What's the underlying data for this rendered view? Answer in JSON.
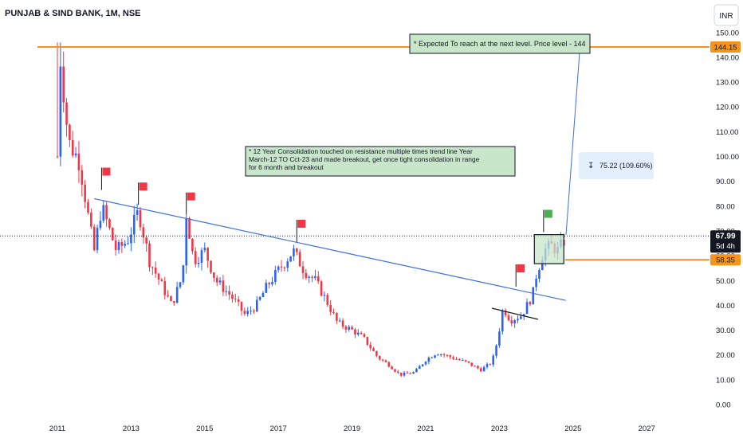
{
  "header": {
    "symbol_title": "PUNJAB & SIND BANK, 1M, NSE"
  },
  "currency_button": {
    "label": "INR"
  },
  "price_scale": {
    "ticks": [
      "150.00",
      "140.00",
      "130.00",
      "120.00",
      "110.00",
      "100.00",
      "90.00",
      "80.00",
      "70.00",
      "60.00",
      "50.00",
      "40.00",
      "30.00",
      "20.00",
      "10.00",
      "0.00"
    ],
    "tick_values": [
      150,
      140,
      130,
      120,
      110,
      100,
      90,
      80,
      70,
      60,
      50,
      40,
      30,
      20,
      10,
      0
    ]
  },
  "time_scale": {
    "ticks": [
      "2011",
      "2013",
      "2015",
      "2017",
      "2019",
      "2021",
      "2023",
      "2025",
      "2027"
    ],
    "tick_values": [
      2011,
      2013,
      2015,
      2017,
      2019,
      2021,
      2023,
      2025,
      2027
    ]
  },
  "price_labels": {
    "target": "144.15",
    "current": "67.99",
    "countdown": "5d 4h",
    "support": "58.35"
  },
  "annotations": {
    "target_note": "*  Expected To reach at the next level. Price level - 144",
    "consolidation_note": "*  12 Year Consolidation touched on resistance multiple times trend line Year March-12 TO Cct-23 and made breakout, get once tight consolidation in range for 6 month and breakout",
    "measure_label": "75.22 (109.60%)"
  },
  "colors": {
    "up": "#2962ff",
    "down": "#f23645",
    "level": "#f7931a",
    "trendline": "#3d6fe0",
    "note_bg": "#c8e6c9",
    "flag_red": "#f23645",
    "flag_green": "#4caf50"
  },
  "chart_data": {
    "type": "candlestick",
    "title": "PUNJAB & SIND BANK, 1M, NSE",
    "x_range": [
      2010.5,
      2028.0
    ],
    "y_range": [
      -3,
      155
    ],
    "horizontal_levels": [
      144.15,
      58.35
    ],
    "current_price": 67.99,
    "trendline": {
      "from": [
        2012.0,
        83
      ],
      "to": [
        2024.8,
        42
      ]
    },
    "consolidation_box": {
      "x": [
        2023.95,
        2024.75
      ],
      "y": [
        56.8,
        68.5
      ]
    },
    "flags": [
      {
        "x": 2012.2,
        "y": 91,
        "color": "red"
      },
      {
        "x": 2013.2,
        "y": 85,
        "color": "red"
      },
      {
        "x": 2014.5,
        "y": 81,
        "color": "red"
      },
      {
        "x": 2017.5,
        "y": 70,
        "color": "red"
      },
      {
        "x": 2023.45,
        "y": 52,
        "color": "red"
      },
      {
        "x": 2024.2,
        "y": 74,
        "color": "green"
      }
    ],
    "anchors": [
      [
        2011.0,
        100
      ],
      [
        2011.08,
        140
      ],
      [
        2011.3,
        106
      ],
      [
        2011.6,
        98
      ],
      [
        2011.9,
        70
      ],
      [
        2012.0,
        62
      ],
      [
        2012.2,
        80
      ],
      [
        2012.6,
        62
      ],
      [
        2012.9,
        66
      ],
      [
        2013.2,
        78
      ],
      [
        2013.5,
        58
      ],
      [
        2013.9,
        46
      ],
      [
        2014.1,
        40
      ],
      [
        2014.4,
        52
      ],
      [
        2014.5,
        77
      ],
      [
        2014.7,
        58
      ],
      [
        2015.0,
        62
      ],
      [
        2015.3,
        50
      ],
      [
        2015.7,
        44
      ],
      [
        2016.1,
        36
      ],
      [
        2016.4,
        40
      ],
      [
        2016.7,
        48
      ],
      [
        2017.0,
        54
      ],
      [
        2017.4,
        62
      ],
      [
        2017.7,
        54
      ],
      [
        2018.0,
        50
      ],
      [
        2018.3,
        42
      ],
      [
        2018.6,
        33
      ],
      [
        2019.0,
        30
      ],
      [
        2019.3,
        27
      ],
      [
        2019.7,
        19
      ],
      [
        2020.0,
        16
      ],
      [
        2020.3,
        12
      ],
      [
        2020.7,
        13
      ],
      [
        2021.0,
        18
      ],
      [
        2021.3,
        21
      ],
      [
        2021.7,
        19
      ],
      [
        2022.1,
        17
      ],
      [
        2022.5,
        14
      ],
      [
        2022.8,
        17
      ],
      [
        2022.95,
        26
      ],
      [
        2023.1,
        39
      ],
      [
        2023.3,
        34
      ],
      [
        2023.6,
        36
      ],
      [
        2023.9,
        44
      ],
      [
        2024.0,
        52
      ],
      [
        2024.2,
        62
      ],
      [
        2024.4,
        64
      ],
      [
        2024.6,
        62
      ],
      [
        2024.75,
        66
      ]
    ]
  }
}
